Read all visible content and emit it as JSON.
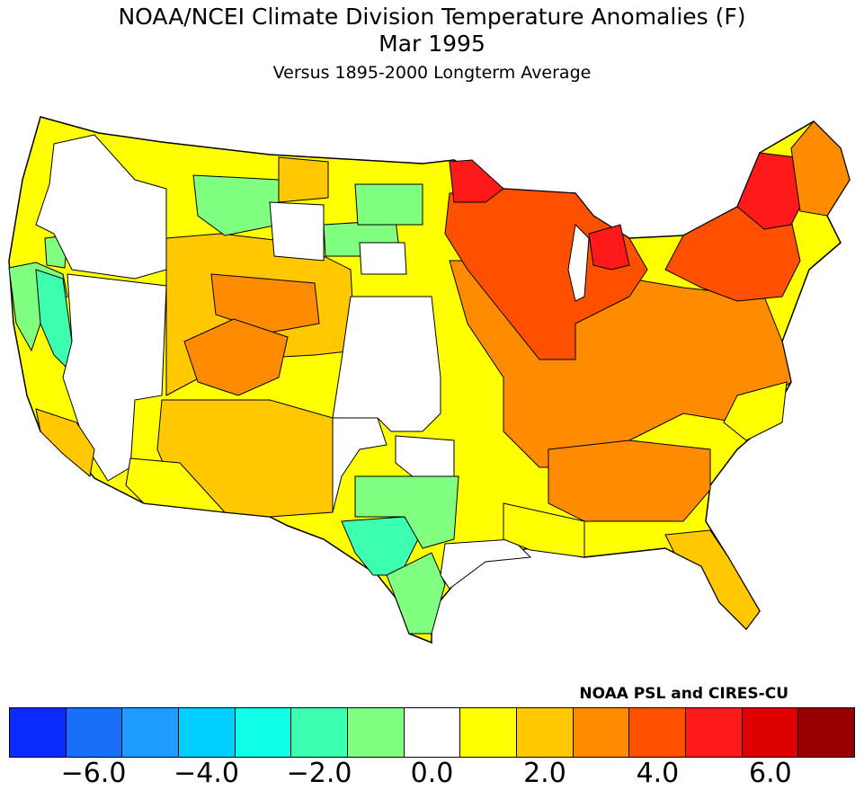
{
  "title": {
    "line1": "NOAA/NCEI Climate Division Temperature Anomalies (F)",
    "line2": "Mar 1995",
    "line3": "Versus 1895-2000 Longterm Average"
  },
  "credit": "NOAA PSL and CIRES-CU",
  "legend": {
    "colors": [
      "#0a2aff",
      "#1a6ef8",
      "#1e9cff",
      "#00d0ff",
      "#10ffe8",
      "#3dffb0",
      "#80ff80",
      "#ffffff",
      "#ffff00",
      "#ffc800",
      "#ff8c00",
      "#ff5000",
      "#ff1a1a",
      "#e00000",
      "#960000"
    ],
    "ticks": [
      {
        "label": "−6.0",
        "value": -6.0
      },
      {
        "label": "−4.0",
        "value": -4.0
      },
      {
        "label": "−2.0",
        "value": -2.0
      },
      {
        "label": "0.0",
        "value": 0.0
      },
      {
        "label": "2.0",
        "value": 2.0
      },
      {
        "label": "4.0",
        "value": 4.0
      },
      {
        "label": "6.0",
        "value": 6.0
      }
    ]
  }
}
